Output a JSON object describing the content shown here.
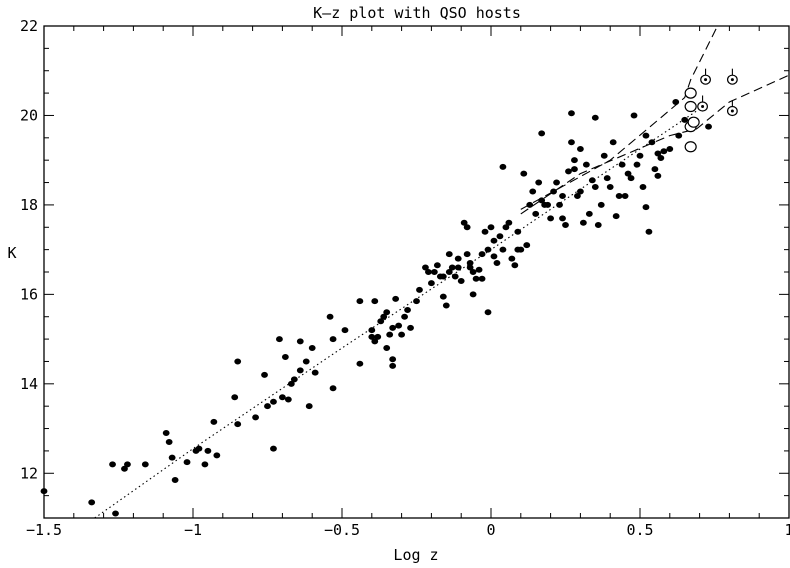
{
  "chart_data": {
    "type": "scatter",
    "title": "K–z plot with QSO hosts",
    "xlabel": "Log z",
    "ylabel": "K",
    "xlim": [
      -1.5,
      1.0
    ],
    "ylim": [
      11.0,
      22.0
    ],
    "x_ticks": [
      -1.5,
      -1,
      -0.5,
      0,
      0.5,
      1
    ],
    "x_tick_labels": [
      "−1.5",
      "−1",
      "−0.5",
      "0",
      "0.5",
      "1"
    ],
    "y_ticks": [
      12,
      14,
      16,
      18,
      20,
      22
    ],
    "y_tick_labels": [
      "12",
      "14",
      "16",
      "18",
      "20",
      "22"
    ],
    "grid": false,
    "legend": "none",
    "series": [
      {
        "marker": "filled-circle",
        "points": [
          [
            -1.5,
            11.6
          ],
          [
            -1.34,
            11.35
          ],
          [
            -1.26,
            11.1
          ],
          [
            -1.27,
            12.2
          ],
          [
            -1.23,
            12.1
          ],
          [
            -1.22,
            12.2
          ],
          [
            -1.16,
            12.2
          ],
          [
            -1.09,
            12.9
          ],
          [
            -1.08,
            12.7
          ],
          [
            -1.07,
            12.35
          ],
          [
            -1.06,
            11.85
          ],
          [
            -1.02,
            12.25
          ],
          [
            -0.99,
            12.5
          ],
          [
            -0.98,
            12.55
          ],
          [
            -0.96,
            12.2
          ],
          [
            -0.95,
            12.5
          ],
          [
            -0.93,
            13.15
          ],
          [
            -0.92,
            12.4
          ],
          [
            -0.86,
            13.7
          ],
          [
            -0.85,
            13.1
          ],
          [
            -0.85,
            14.5
          ],
          [
            -0.79,
            13.25
          ],
          [
            -0.76,
            14.2
          ],
          [
            -0.75,
            13.5
          ],
          [
            -0.73,
            13.6
          ],
          [
            -0.73,
            12.55
          ],
          [
            -0.71,
            15.0
          ],
          [
            -0.7,
            13.7
          ],
          [
            -0.69,
            14.6
          ],
          [
            -0.68,
            13.65
          ],
          [
            -0.67,
            14.0
          ],
          [
            -0.66,
            14.1
          ],
          [
            -0.64,
            14.3
          ],
          [
            -0.64,
            14.95
          ],
          [
            -0.62,
            14.5
          ],
          [
            -0.61,
            13.5
          ],
          [
            -0.6,
            14.8
          ],
          [
            -0.59,
            14.25
          ],
          [
            -0.54,
            15.5
          ],
          [
            -0.53,
            15.0
          ],
          [
            -0.53,
            13.9
          ],
          [
            -0.49,
            15.2
          ],
          [
            -0.44,
            15.85
          ],
          [
            -0.44,
            14.45
          ],
          [
            -0.4,
            15.2
          ],
          [
            -0.4,
            15.05
          ],
          [
            -0.39,
            15.85
          ],
          [
            -0.39,
            14.95
          ],
          [
            -0.38,
            15.05
          ],
          [
            -0.37,
            15.4
          ],
          [
            -0.36,
            15.5
          ],
          [
            -0.35,
            15.6
          ],
          [
            -0.35,
            14.8
          ],
          [
            -0.34,
            15.1
          ],
          [
            -0.33,
            15.25
          ],
          [
            -0.33,
            14.55
          ],
          [
            -0.33,
            14.4
          ],
          [
            -0.32,
            15.9
          ],
          [
            -0.31,
            15.3
          ],
          [
            -0.3,
            15.1
          ],
          [
            -0.29,
            15.5
          ],
          [
            -0.28,
            15.65
          ],
          [
            -0.27,
            15.25
          ],
          [
            -0.25,
            15.85
          ],
          [
            -0.24,
            16.1
          ],
          [
            -0.22,
            16.6
          ],
          [
            -0.21,
            16.5
          ],
          [
            -0.2,
            16.25
          ],
          [
            -0.19,
            16.5
          ],
          [
            -0.18,
            16.65
          ],
          [
            -0.17,
            16.4
          ],
          [
            -0.16,
            15.95
          ],
          [
            -0.16,
            16.4
          ],
          [
            -0.15,
            15.75
          ],
          [
            -0.14,
            16.9
          ],
          [
            -0.14,
            16.5
          ],
          [
            -0.13,
            16.6
          ],
          [
            -0.12,
            16.4
          ],
          [
            -0.11,
            16.6
          ],
          [
            -0.11,
            16.8
          ],
          [
            -0.1,
            16.3
          ],
          [
            -0.09,
            17.6
          ],
          [
            -0.08,
            17.5
          ],
          [
            -0.08,
            16.9
          ],
          [
            -0.07,
            16.6
          ],
          [
            -0.07,
            16.7
          ],
          [
            -0.06,
            16.5
          ],
          [
            -0.06,
            16.0
          ],
          [
            -0.05,
            16.35
          ],
          [
            -0.04,
            16.55
          ],
          [
            -0.03,
            16.9
          ],
          [
            -0.03,
            16.35
          ],
          [
            -0.01,
            15.6
          ],
          [
            -0.02,
            17.4
          ],
          [
            -0.01,
            17.0
          ],
          [
            0.0,
            17.5
          ],
          [
            0.01,
            17.2
          ],
          [
            0.01,
            16.85
          ],
          [
            0.02,
            16.7
          ],
          [
            0.03,
            17.3
          ],
          [
            0.04,
            17.0
          ],
          [
            0.04,
            18.85
          ],
          [
            0.05,
            17.5
          ],
          [
            0.06,
            17.6
          ],
          [
            0.07,
            16.8
          ],
          [
            0.08,
            16.65
          ],
          [
            0.09,
            17.4
          ],
          [
            0.09,
            17.0
          ],
          [
            0.1,
            17.0
          ],
          [
            0.11,
            18.7
          ],
          [
            0.12,
            17.1
          ],
          [
            0.13,
            18.0
          ],
          [
            0.14,
            18.3
          ],
          [
            0.15,
            17.8
          ],
          [
            0.16,
            18.5
          ],
          [
            0.17,
            18.1
          ],
          [
            0.17,
            19.6
          ],
          [
            0.18,
            18.0
          ],
          [
            0.19,
            18.0
          ],
          [
            0.2,
            17.7
          ],
          [
            0.21,
            18.3
          ],
          [
            0.22,
            18.5
          ],
          [
            0.23,
            18.0
          ],
          [
            0.24,
            17.7
          ],
          [
            0.24,
            18.2
          ],
          [
            0.25,
            17.55
          ],
          [
            0.26,
            18.75
          ],
          [
            0.27,
            19.4
          ],
          [
            0.28,
            18.8
          ],
          [
            0.28,
            19.0
          ],
          [
            0.29,
            18.2
          ],
          [
            0.3,
            18.3
          ],
          [
            0.3,
            19.25
          ],
          [
            0.31,
            17.6
          ],
          [
            0.32,
            18.9
          ],
          [
            0.33,
            17.8
          ],
          [
            0.34,
            18.55
          ],
          [
            0.35,
            18.4
          ],
          [
            0.36,
            17.55
          ],
          [
            0.37,
            18.0
          ],
          [
            0.38,
            19.1
          ],
          [
            0.39,
            18.6
          ],
          [
            0.4,
            18.4
          ],
          [
            0.41,
            19.4
          ],
          [
            0.42,
            17.75
          ],
          [
            0.43,
            18.2
          ],
          [
            0.44,
            18.9
          ],
          [
            0.45,
            18.2
          ],
          [
            0.46,
            18.7
          ],
          [
            0.47,
            18.6
          ],
          [
            0.48,
            20.0
          ],
          [
            0.49,
            18.9
          ],
          [
            0.5,
            19.1
          ],
          [
            0.51,
            18.4
          ],
          [
            0.52,
            17.95
          ],
          [
            0.53,
            17.4
          ],
          [
            0.54,
            19.4
          ],
          [
            0.55,
            18.8
          ],
          [
            0.56,
            18.65
          ],
          [
            0.56,
            19.15
          ],
          [
            0.57,
            19.05
          ],
          [
            0.58,
            19.2
          ],
          [
            0.6,
            19.25
          ],
          [
            0.63,
            19.55
          ],
          [
            0.65,
            19.9
          ],
          [
            0.27,
            20.05
          ],
          [
            0.35,
            19.95
          ],
          [
            0.62,
            20.3
          ],
          [
            0.73,
            19.75
          ],
          [
            0.52,
            19.55
          ]
        ]
      },
      {
        "marker": "open-circle",
        "points": [
          [
            0.67,
            19.3
          ],
          [
            0.67,
            19.75
          ],
          [
            0.68,
            19.85
          ],
          [
            0.67,
            20.2
          ],
          [
            0.67,
            20.5
          ]
        ]
      },
      {
        "marker": "circle-dot-with-tick",
        "points": [
          [
            0.71,
            20.2
          ],
          [
            0.72,
            20.8
          ],
          [
            0.81,
            20.8
          ],
          [
            0.81,
            20.1
          ]
        ]
      }
    ],
    "lines": [
      {
        "style": "dotted",
        "points": [
          [
            -1.33,
            11.0
          ],
          [
            -1.0,
            12.55
          ],
          [
            -0.5,
            14.8
          ],
          [
            0.0,
            17.0
          ],
          [
            0.4,
            18.8
          ],
          [
            0.69,
            20.1
          ]
        ]
      },
      {
        "style": "dashed",
        "points": [
          [
            0.1,
            17.9
          ],
          [
            0.4,
            19.0
          ],
          [
            0.65,
            20.4
          ],
          [
            0.67,
            20.8
          ],
          [
            0.76,
            22.0
          ]
        ]
      },
      {
        "style": "dashed",
        "points": [
          [
            0.1,
            17.8
          ],
          [
            0.3,
            18.7
          ],
          [
            0.6,
            19.55
          ],
          [
            0.69,
            19.7
          ],
          [
            0.8,
            20.3
          ],
          [
            1.0,
            20.9
          ]
        ]
      }
    ]
  }
}
